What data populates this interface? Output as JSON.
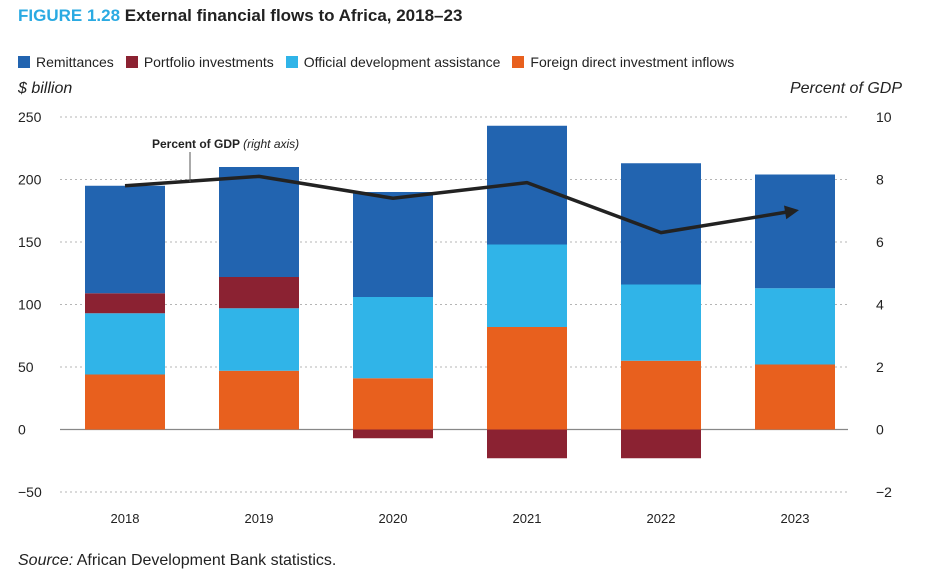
{
  "figure": {
    "number": "FIGURE 1.28",
    "title": "External financial flows to Africa, 2018–23"
  },
  "y_left_label": "$ billion",
  "y_right_label": "Percent of GDP",
  "annotation": {
    "main": "Percent of GDP",
    "note": "(right axis)"
  },
  "source": {
    "label": "Source:",
    "text": "African Development Bank statistics."
  },
  "colors": {
    "remittances": "#2264b0",
    "portfolio": "#8b2232",
    "oda": "#30b4e8",
    "fdi": "#e8601e",
    "line": "#222222",
    "grid": "#b5b5b5"
  },
  "chart_data": {
    "type": "bar",
    "stacked": true,
    "categories": [
      "2018",
      "2019",
      "2020",
      "2021",
      "2022",
      "2023"
    ],
    "series": [
      {
        "name": "Remittances",
        "key": "remittances",
        "values": [
          86,
          88,
          84,
          95,
          97,
          91
        ]
      },
      {
        "name": "Portfolio investments",
        "key": "portfolio",
        "values": [
          16,
          25,
          -7,
          -23,
          -23,
          0
        ]
      },
      {
        "name": "Official development assistance",
        "key": "oda",
        "values": [
          49,
          50,
          65,
          66,
          61,
          61
        ]
      },
      {
        "name": "Foreign direct investment inflows",
        "key": "fdi",
        "values": [
          44,
          47,
          41,
          82,
          55,
          52
        ]
      }
    ],
    "stack_order_bottom_to_top": [
      "fdi",
      "oda",
      "portfolio",
      "remittances"
    ],
    "line": {
      "name": "Percent of GDP",
      "axis": "right",
      "values": [
        7.8,
        8.1,
        7.4,
        7.9,
        6.3,
        7.0
      ]
    },
    "ylim_left": [
      -50,
      250
    ],
    "yticks_left": [
      -50,
      0,
      50,
      100,
      150,
      200,
      250
    ],
    "ylim_right": [
      -2,
      10
    ],
    "yticks_right": [
      -2,
      0,
      2,
      4,
      6,
      8,
      10
    ],
    "legend_order": [
      "remittances",
      "portfolio",
      "oda",
      "fdi"
    ],
    "legend_position": "top",
    "grid": true
  }
}
